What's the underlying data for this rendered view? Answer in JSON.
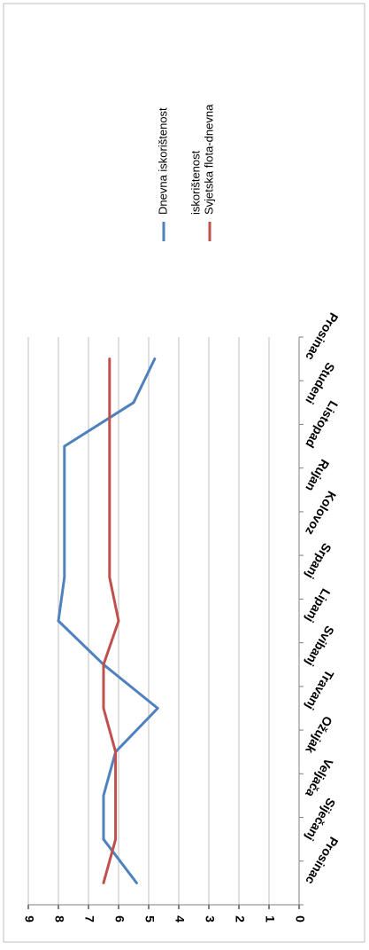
{
  "chart_data": {
    "type": "line",
    "categories": [
      "Prosinac",
      "Siječanj",
      "Veljača",
      "Ožujak",
      "Travanj",
      "Svibanj",
      "Lipanj",
      "Srpanj",
      "Kolovoz",
      "Rujan",
      "Listopad",
      "Studeni",
      "Prosinac"
    ],
    "series": [
      {
        "name": "Dnevna iskorištenost",
        "color": "#4F81BD",
        "values": [
          5.4,
          6.5,
          6.5,
          6.1,
          4.7,
          6.5,
          8.0,
          7.8,
          7.8,
          7.8,
          7.8,
          5.5,
          4.8
        ]
      },
      {
        "name": "Svjetska flota-dnevna iskorištenost",
        "name_lines": [
          "Svjetska flota-dnevna",
          "iskorištenost"
        ],
        "color": "#C0504D",
        "values": [
          6.5,
          6.1,
          6.1,
          6.1,
          6.5,
          6.5,
          6.0,
          6.3,
          6.3,
          6.3,
          6.3,
          6.3,
          6.3
        ]
      }
    ],
    "yticks": [
      "0",
      "1",
      "2",
      "3",
      "4",
      "5",
      "6",
      "7",
      "8",
      "9"
    ],
    "ylim": [
      0,
      9
    ],
    "grid": true,
    "legend_position": "right",
    "orientation": "rotated-90-clockwise"
  }
}
